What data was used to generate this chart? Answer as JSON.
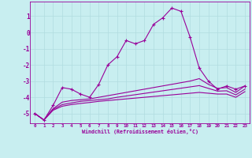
{
  "xlabel": "Windchill (Refroidissement éolien,°C)",
  "bg_color": "#c8eef0",
  "grid_color": "#b0dce0",
  "line_color": "#990099",
  "xlim": [
    -0.5,
    23.5
  ],
  "ylim": [
    -5.6,
    1.9
  ],
  "yticks": [
    1,
    0,
    -1,
    -2,
    -3,
    -4,
    -5
  ],
  "xticks": [
    0,
    1,
    2,
    3,
    4,
    5,
    6,
    7,
    8,
    9,
    10,
    11,
    12,
    13,
    14,
    15,
    16,
    17,
    18,
    19,
    20,
    21,
    22,
    23
  ],
  "series": [
    {
      "x": [
        0,
        1,
        2,
        3,
        4,
        5,
        6,
        7,
        8,
        9,
        10,
        11,
        12,
        13,
        14,
        15,
        16,
        17,
        18,
        19,
        20,
        21,
        22,
        23
      ],
      "y": [
        -5.0,
        -5.4,
        -4.5,
        -3.4,
        -3.5,
        -3.8,
        -4.0,
        -3.2,
        -2.0,
        -1.5,
        -0.5,
        -0.7,
        -0.5,
        0.5,
        0.9,
        1.5,
        1.3,
        -0.3,
        -2.2,
        -3.0,
        -3.5,
        -3.3,
        -3.5,
        -3.3
      ],
      "marker": "+"
    },
    {
      "x": [
        0,
        1,
        2,
        3,
        4,
        5,
        6,
        7,
        8,
        9,
        10,
        11,
        12,
        13,
        14,
        15,
        16,
        17,
        18,
        19,
        20,
        21,
        22,
        23
      ],
      "y": [
        -5.0,
        -5.4,
        -4.7,
        -4.3,
        -4.2,
        -4.15,
        -4.1,
        -4.0,
        -3.9,
        -3.8,
        -3.7,
        -3.6,
        -3.5,
        -3.4,
        -3.3,
        -3.2,
        -3.1,
        -3.0,
        -2.85,
        -3.2,
        -3.45,
        -3.4,
        -3.7,
        -3.3
      ],
      "marker": null
    },
    {
      "x": [
        0,
        1,
        2,
        3,
        4,
        5,
        6,
        7,
        8,
        9,
        10,
        11,
        12,
        13,
        14,
        15,
        16,
        17,
        18,
        19,
        20,
        21,
        22,
        23
      ],
      "y": [
        -5.0,
        -5.4,
        -4.75,
        -4.45,
        -4.35,
        -4.25,
        -4.2,
        -4.15,
        -4.1,
        -4.0,
        -3.92,
        -3.84,
        -3.76,
        -3.68,
        -3.6,
        -3.52,
        -3.44,
        -3.36,
        -3.28,
        -3.45,
        -3.62,
        -3.6,
        -3.85,
        -3.5
      ],
      "marker": null
    },
    {
      "x": [
        0,
        1,
        2,
        3,
        4,
        5,
        6,
        7,
        8,
        9,
        10,
        11,
        12,
        13,
        14,
        15,
        16,
        17,
        18,
        19,
        20,
        21,
        22,
        23
      ],
      "y": [
        -5.0,
        -5.4,
        -4.8,
        -4.55,
        -4.45,
        -4.38,
        -4.32,
        -4.25,
        -4.2,
        -4.15,
        -4.1,
        -4.05,
        -4.0,
        -3.95,
        -3.9,
        -3.85,
        -3.8,
        -3.75,
        -3.7,
        -3.75,
        -3.8,
        -3.8,
        -4.0,
        -3.65
      ],
      "marker": null
    }
  ]
}
